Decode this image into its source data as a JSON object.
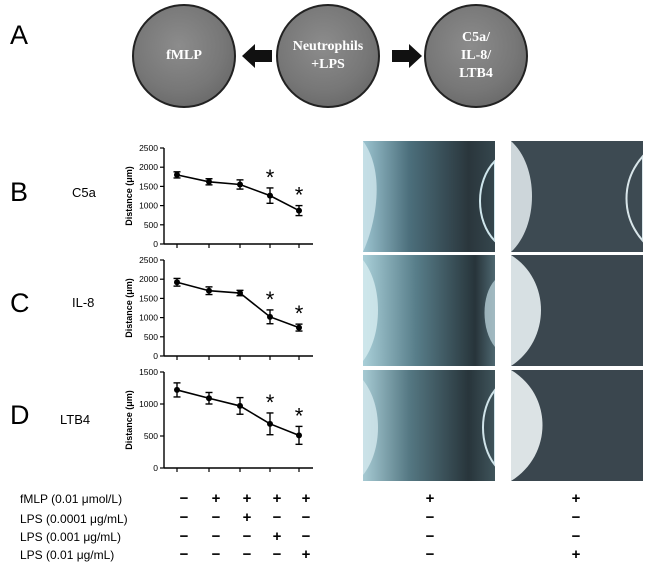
{
  "panels": {
    "a": "A",
    "b": "B",
    "c": "C",
    "d": "D"
  },
  "schematic": {
    "left": "fMLP",
    "center_line1": "Neutrophils",
    "center_line2": "+LPS",
    "right_line1": "C5a/",
    "right_line2": "IL-8/",
    "right_line3": "LTB4"
  },
  "chart_data": [
    {
      "type": "line",
      "name_label": "C5a",
      "ylabel": "Distance (μm)",
      "ylim": [
        0,
        2500
      ],
      "yticks": [
        0,
        500,
        1000,
        1500,
        2000,
        2500
      ],
      "x": [
        1,
        2,
        3,
        4,
        5
      ],
      "values": [
        1800,
        1620,
        1550,
        1260,
        870
      ],
      "errors": [
        80,
        80,
        120,
        200,
        130
      ],
      "significant": [
        false,
        false,
        false,
        true,
        true
      ],
      "star": "*"
    },
    {
      "type": "line",
      "name_label": "IL-8",
      "ylabel": "Distance (μm)",
      "ylim": [
        0,
        2500
      ],
      "yticks": [
        0,
        500,
        1000,
        1500,
        2000,
        2500
      ],
      "x": [
        1,
        2,
        3,
        4,
        5
      ],
      "values": [
        1920,
        1700,
        1640,
        1020,
        740
      ],
      "errors": [
        100,
        100,
        70,
        180,
        90
      ],
      "significant": [
        false,
        false,
        false,
        true,
        true
      ],
      "star": "*"
    },
    {
      "type": "line",
      "name_label": "LTB4",
      "ylabel": "Distance (μm)",
      "ylim": [
        0,
        1500
      ],
      "yticks": [
        0,
        500,
        1000,
        1500
      ],
      "x": [
        1,
        2,
        3,
        4,
        5
      ],
      "values": [
        1220,
        1090,
        970,
        690,
        510
      ],
      "errors": [
        110,
        90,
        130,
        170,
        140
      ],
      "significant": [
        false,
        false,
        false,
        true,
        true
      ],
      "star": "*"
    }
  ],
  "table": {
    "rows": [
      {
        "label": "fMLP (0.01 μmol/L)",
        "chart": [
          "−",
          "+",
          "+",
          "+",
          "+"
        ],
        "img1": "+",
        "img2": "+"
      },
      {
        "label": "LPS (0.0001 μg/mL)",
        "chart": [
          "−",
          "−",
          "+",
          "−",
          "−"
        ],
        "img1": "−",
        "img2": "−"
      },
      {
        "label": "LPS (0.001 μg/mL)",
        "chart": [
          "−",
          "−",
          "−",
          "+",
          "−"
        ],
        "img1": "−",
        "img2": "−"
      },
      {
        "label": "LPS (0.01 μg/mL)",
        "chart": [
          "−",
          "−",
          "−",
          "−",
          "+"
        ],
        "img1": "−",
        "img2": "+"
      }
    ]
  },
  "colors": {
    "circle_fill": "#7a7a7a",
    "micro_dark": "#2c3a40",
    "micro_teal": "#8fb8c4"
  }
}
